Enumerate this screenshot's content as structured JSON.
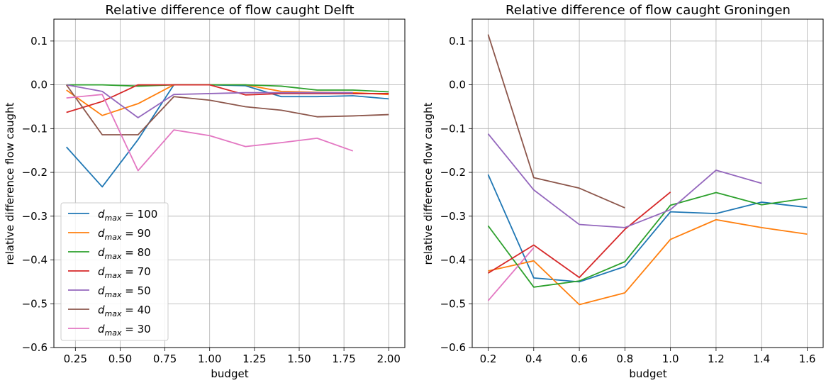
{
  "chart_data": [
    {
      "type": "line",
      "title": "Relative difference of flow caught Delft",
      "xlabel": "budget",
      "ylabel": "relative difference flow caught",
      "xlim": [
        0.13,
        2.09
      ],
      "ylim": [
        -0.6,
        0.15
      ],
      "xticks": [
        0.25,
        0.5,
        0.75,
        1.0,
        1.25,
        1.5,
        1.75,
        2.0
      ],
      "xtick_labels": [
        "0.25",
        "0.50",
        "0.75",
        "1.00",
        "1.25",
        "1.50",
        "1.75",
        "2.00"
      ],
      "yticks": [
        0.1,
        0.0,
        -0.1,
        -0.2,
        -0.3,
        -0.4,
        -0.5,
        -0.6
      ],
      "ytick_labels": [
        "0.1",
        "0.0",
        "−0.1",
        "−0.2",
        "−0.3",
        "−0.4",
        "−0.5",
        "−0.6"
      ],
      "grid": true,
      "legend": "lower-left",
      "series": [
        {
          "name": "d_max = 100",
          "var": "d",
          "sub": "max",
          "val": "= 100",
          "color": "#1f77b4",
          "x": [
            0.2,
            0.4,
            0.6,
            0.8,
            1.0,
            1.2,
            1.4,
            1.6,
            1.8,
            2.0
          ],
          "y": [
            -0.142,
            -0.233,
            -0.125,
            0.0,
            0.0,
            -0.002,
            -0.027,
            -0.027,
            -0.025,
            -0.032
          ]
        },
        {
          "name": "d_max = 90",
          "var": "d",
          "sub": "max",
          "val": "= 90",
          "color": "#ff7f0e",
          "x": [
            0.2,
            0.4,
            0.6,
            0.8,
            1.0,
            1.2,
            1.4,
            1.6,
            1.8,
            2.0
          ],
          "y": [
            -0.012,
            -0.07,
            -0.043,
            0.0,
            0.0,
            0.0,
            -0.015,
            -0.017,
            -0.018,
            -0.022
          ]
        },
        {
          "name": "d_max = 80",
          "var": "d",
          "sub": "max",
          "val": "= 80",
          "color": "#2ca02c",
          "x": [
            0.2,
            0.4,
            0.6,
            0.8,
            1.0,
            1.2,
            1.4,
            1.6,
            1.8,
            2.0
          ],
          "y": [
            0.0,
            0.0,
            -0.003,
            0.0,
            0.0,
            0.0,
            -0.003,
            -0.012,
            -0.012,
            -0.016
          ]
        },
        {
          "name": "d_max = 70",
          "var": "d",
          "sub": "max",
          "val": "= 70",
          "color": "#d62728",
          "x": [
            0.2,
            0.4,
            0.6,
            0.8,
            1.0,
            1.2,
            1.4,
            1.6,
            1.8,
            2.0
          ],
          "y": [
            -0.063,
            -0.038,
            0.0,
            0.0,
            0.0,
            -0.023,
            -0.02,
            -0.02,
            -0.02,
            -0.02
          ]
        },
        {
          "name": "d_max = 50",
          "var": "d",
          "sub": "max",
          "val": "= 50",
          "color": "#9467bd",
          "x": [
            0.2,
            0.4,
            0.6,
            0.8,
            1.0,
            1.2,
            1.4,
            1.6,
            1.8
          ],
          "y": [
            0.0,
            -0.015,
            -0.075,
            -0.022,
            -0.02,
            -0.018,
            -0.018,
            -0.018,
            -0.018
          ]
        },
        {
          "name": "d_max = 40",
          "var": "d",
          "sub": "max",
          "val": "= 40",
          "color": "#8c564b",
          "x": [
            0.2,
            0.4,
            0.6,
            0.8,
            1.0,
            1.2,
            1.4,
            1.6,
            1.8,
            2.0
          ],
          "y": [
            0.0,
            -0.114,
            -0.114,
            -0.027,
            -0.035,
            -0.05,
            -0.058,
            -0.073,
            -0.071,
            -0.068
          ]
        },
        {
          "name": "d_max = 30",
          "var": "d",
          "sub": "max",
          "val": "= 30",
          "color": "#e377c2",
          "x": [
            0.2,
            0.4,
            0.6,
            0.8,
            1.0,
            1.2,
            1.4,
            1.6,
            1.8
          ],
          "y": [
            -0.03,
            -0.022,
            -0.196,
            -0.103,
            -0.116,
            -0.141,
            -0.132,
            -0.122,
            -0.151
          ]
        }
      ]
    },
    {
      "type": "line",
      "title": "Relative difference of flow caught Groningen",
      "xlabel": "budget",
      "ylabel": "relative difference flow caught",
      "xlim": [
        0.13,
        1.67
      ],
      "ylim": [
        -0.6,
        0.15
      ],
      "xticks": [
        0.2,
        0.4,
        0.6,
        0.8,
        1.0,
        1.2,
        1.4,
        1.6
      ],
      "xtick_labels": [
        "0.2",
        "0.4",
        "0.6",
        "0.8",
        "1.0",
        "1.2",
        "1.4",
        "1.6"
      ],
      "yticks": [
        0.1,
        0.0,
        -0.1,
        -0.2,
        -0.3,
        -0.4,
        -0.5,
        -0.6
      ],
      "ytick_labels": [
        "0.1",
        "0.0",
        "−0.1",
        "−0.2",
        "−0.3",
        "−0.4",
        "−0.5",
        "−0.6"
      ],
      "grid": true,
      "series": [
        {
          "name": "d_max = 100",
          "color": "#1f77b4",
          "x": [
            0.2,
            0.4,
            0.6,
            0.8,
            1.0,
            1.2,
            1.4,
            1.6
          ],
          "y": [
            -0.205,
            -0.441,
            -0.45,
            -0.415,
            -0.29,
            -0.294,
            -0.268,
            -0.28
          ]
        },
        {
          "name": "d_max = 90",
          "color": "#ff7f0e",
          "x": [
            0.2,
            0.4,
            0.6,
            0.8,
            1.0,
            1.2,
            1.4,
            1.6
          ],
          "y": [
            -0.425,
            -0.402,
            -0.502,
            -0.475,
            -0.353,
            -0.308,
            -0.326,
            -0.341
          ]
        },
        {
          "name": "d_max = 80",
          "color": "#2ca02c",
          "x": [
            0.2,
            0.4,
            0.6,
            0.8,
            1.0,
            1.2,
            1.4,
            1.6
          ],
          "y": [
            -0.322,
            -0.462,
            -0.448,
            -0.404,
            -0.275,
            -0.246,
            -0.274,
            -0.259
          ]
        },
        {
          "name": "d_max = 70",
          "color": "#d62728",
          "x": [
            0.2,
            0.4,
            0.6,
            0.8,
            1.0
          ],
          "y": [
            -0.43,
            -0.366,
            -0.44,
            -0.33,
            -0.245
          ]
        },
        {
          "name": "d_max = 50",
          "color": "#9467bd",
          "x": [
            0.2,
            0.4,
            0.6,
            0.8,
            1.0,
            1.2,
            1.4
          ],
          "y": [
            -0.112,
            -0.24,
            -0.319,
            -0.326,
            -0.285,
            -0.195,
            -0.225
          ]
        },
        {
          "name": "d_max = 40",
          "color": "#8c564b",
          "x": [
            0.2,
            0.4,
            0.6,
            0.8
          ],
          "y": [
            0.115,
            -0.212,
            -0.236,
            -0.281
          ]
        },
        {
          "name": "d_max = 30",
          "color": "#e377c2",
          "x": [
            0.2,
            0.4
          ],
          "y": [
            -0.493,
            -0.372
          ]
        }
      ]
    }
  ]
}
